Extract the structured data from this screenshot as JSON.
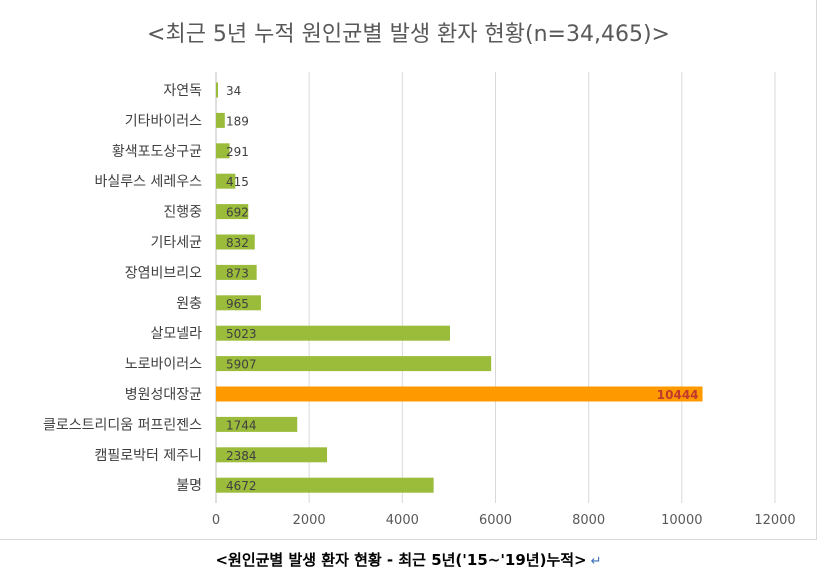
{
  "chart_data": {
    "type": "bar",
    "orientation": "horizontal",
    "title": "<최근 5년 누적 원인균별 발생 환자 현황(n=34,465)>",
    "xlabel": "",
    "ylabel": "",
    "xlim": [
      0,
      12000
    ],
    "xticks": [
      0,
      2000,
      4000,
      6000,
      8000,
      10000,
      12000
    ],
    "grid": "vertical",
    "categories": [
      "자연독",
      "기타바이러스",
      "황색포도상구균",
      "바실루스 세레우스",
      "진행중",
      "기타세균",
      "장염비브리오",
      "원충",
      "살모넬라",
      "노로바이러스",
      "병원성대장균",
      "클로스트리디움 퍼프린젠스",
      "캠필로박터 제주니",
      "불명"
    ],
    "values": [
      34,
      189,
      291,
      415,
      692,
      832,
      873,
      965,
      5023,
      5907,
      10444,
      1744,
      2384,
      4672
    ],
    "highlight_index": 10,
    "colors": {
      "bar": "#9bbb3b",
      "highlight": "#ff9900",
      "highlight_label": "#c0392b",
      "grid": "#d9d9d9",
      "axis_text": "#595959"
    }
  },
  "caption": {
    "text": "<원인균별 발생 환자 현황 - 최근 5년('15~'19년)누적>",
    "return_mark": "↵"
  }
}
